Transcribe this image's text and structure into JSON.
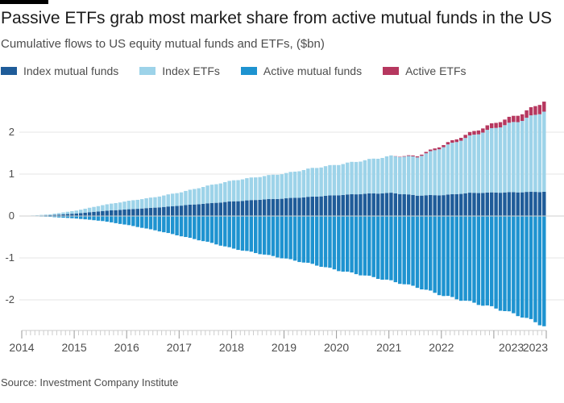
{
  "title": "Passive ETFs grab most market share from active mutual funds in the US",
  "subtitle": "Cumulative flows to US equity mutual funds and ETFs, ($bn)",
  "source": "Source: Investment Company Institute",
  "chart_data": {
    "type": "bar",
    "stacked": true,
    "frequency": "monthly",
    "period": [
      "2014-01",
      "2023-12"
    ],
    "x_tick_labels": [
      "2014",
      "2015",
      "2016",
      "2017",
      "2018",
      "2019",
      "2020",
      "2021",
      "2022",
      "2023",
      "2023"
    ],
    "y_ticks": [
      -2,
      -1,
      0,
      1,
      2
    ],
    "y_tick_labels": [
      "-2",
      "-1",
      "0",
      "1",
      "2"
    ],
    "ylim": [
      -2.6,
      2.8
    ],
    "grid": true,
    "legend_position": "top-left",
    "series": [
      {
        "name": "Index mutual funds",
        "color": "#1f5c99",
        "anchors": [
          [
            0,
            0.0
          ],
          [
            6,
            0.02
          ],
          [
            12,
            0.06
          ],
          [
            18,
            0.12
          ],
          [
            24,
            0.16
          ],
          [
            30,
            0.2
          ],
          [
            36,
            0.25
          ],
          [
            42,
            0.3
          ],
          [
            48,
            0.35
          ],
          [
            54,
            0.39
          ],
          [
            60,
            0.42
          ],
          [
            66,
            0.46
          ],
          [
            72,
            0.5
          ],
          [
            78,
            0.53
          ],
          [
            84,
            0.55
          ],
          [
            90,
            0.49
          ],
          [
            96,
            0.5
          ],
          [
            102,
            0.55
          ],
          [
            108,
            0.56
          ],
          [
            114,
            0.57
          ],
          [
            119,
            0.58
          ]
        ]
      },
      {
        "name": "Index ETFs",
        "color": "#9dd3e9",
        "anchors": [
          [
            0,
            0.0
          ],
          [
            6,
            0.02
          ],
          [
            12,
            0.07
          ],
          [
            18,
            0.14
          ],
          [
            24,
            0.2
          ],
          [
            30,
            0.25
          ],
          [
            36,
            0.32
          ],
          [
            42,
            0.42
          ],
          [
            48,
            0.5
          ],
          [
            54,
            0.55
          ],
          [
            60,
            0.6
          ],
          [
            66,
            0.68
          ],
          [
            72,
            0.73
          ],
          [
            78,
            0.8
          ],
          [
            84,
            0.88
          ],
          [
            90,
            0.92
          ],
          [
            96,
            1.15
          ],
          [
            102,
            1.35
          ],
          [
            108,
            1.55
          ],
          [
            114,
            1.72
          ],
          [
            119,
            1.92
          ]
        ]
      },
      {
        "name": "Active mutual funds",
        "color": "#1e93d0",
        "anchors": [
          [
            0,
            0.0
          ],
          [
            6,
            -0.02
          ],
          [
            12,
            -0.06
          ],
          [
            18,
            -0.12
          ],
          [
            24,
            -0.22
          ],
          [
            30,
            -0.34
          ],
          [
            36,
            -0.48
          ],
          [
            42,
            -0.62
          ],
          [
            48,
            -0.78
          ],
          [
            54,
            -0.9
          ],
          [
            60,
            -1.02
          ],
          [
            66,
            -1.15
          ],
          [
            72,
            -1.3
          ],
          [
            78,
            -1.42
          ],
          [
            84,
            -1.55
          ],
          [
            90,
            -1.7
          ],
          [
            96,
            -1.9
          ],
          [
            102,
            -2.05
          ],
          [
            108,
            -2.2
          ],
          [
            114,
            -2.4
          ],
          [
            119,
            -2.62
          ]
        ]
      },
      {
        "name": "Active ETFs",
        "color": "#b6375f",
        "anchors": [
          [
            0,
            0.0
          ],
          [
            84,
            0.0
          ],
          [
            96,
            0.05
          ],
          [
            102,
            0.08
          ],
          [
            108,
            0.12
          ],
          [
            114,
            0.16
          ],
          [
            119,
            0.24
          ]
        ]
      }
    ]
  }
}
